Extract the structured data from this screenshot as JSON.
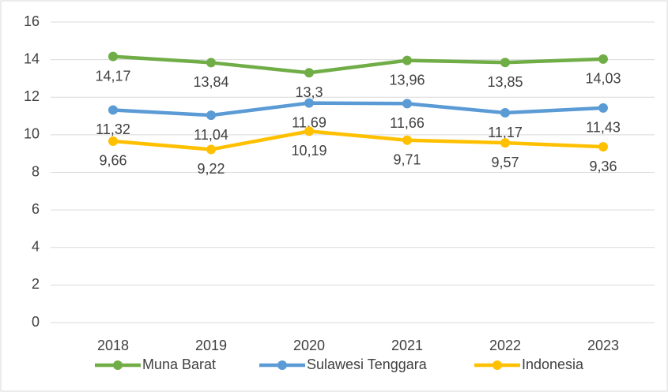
{
  "chart_data": {
    "type": "line",
    "categories": [
      "2018",
      "2019",
      "2020",
      "2021",
      "2022",
      "2023"
    ],
    "series": [
      {
        "name": "Muna Barat",
        "color": "#70ad47",
        "values": [
          14.17,
          13.84,
          13.3,
          13.96,
          13.85,
          14.03
        ],
        "value_labels": [
          "14,17",
          "13,84",
          "13,3",
          "13,96",
          "13,85",
          "14,03"
        ]
      },
      {
        "name": "Sulawesi Tenggara",
        "color": "#5b9bd5",
        "values": [
          11.32,
          11.04,
          11.69,
          11.66,
          11.17,
          11.43
        ],
        "value_labels": [
          "11,32",
          "11,04",
          "11,69",
          "11,66",
          "11,17",
          "11,43"
        ]
      },
      {
        "name": "Indonesia",
        "color": "#ffc000",
        "values": [
          9.66,
          9.22,
          10.19,
          9.71,
          9.57,
          9.36
        ],
        "value_labels": [
          "9,66",
          "9,22",
          "10,19",
          "9,71",
          "9,57",
          "9,36"
        ]
      }
    ],
    "ylim": [
      0,
      16
    ],
    "yticks": [
      0,
      2,
      4,
      6,
      8,
      10,
      12,
      14,
      16
    ],
    "grid": true,
    "legend": "bottom"
  }
}
